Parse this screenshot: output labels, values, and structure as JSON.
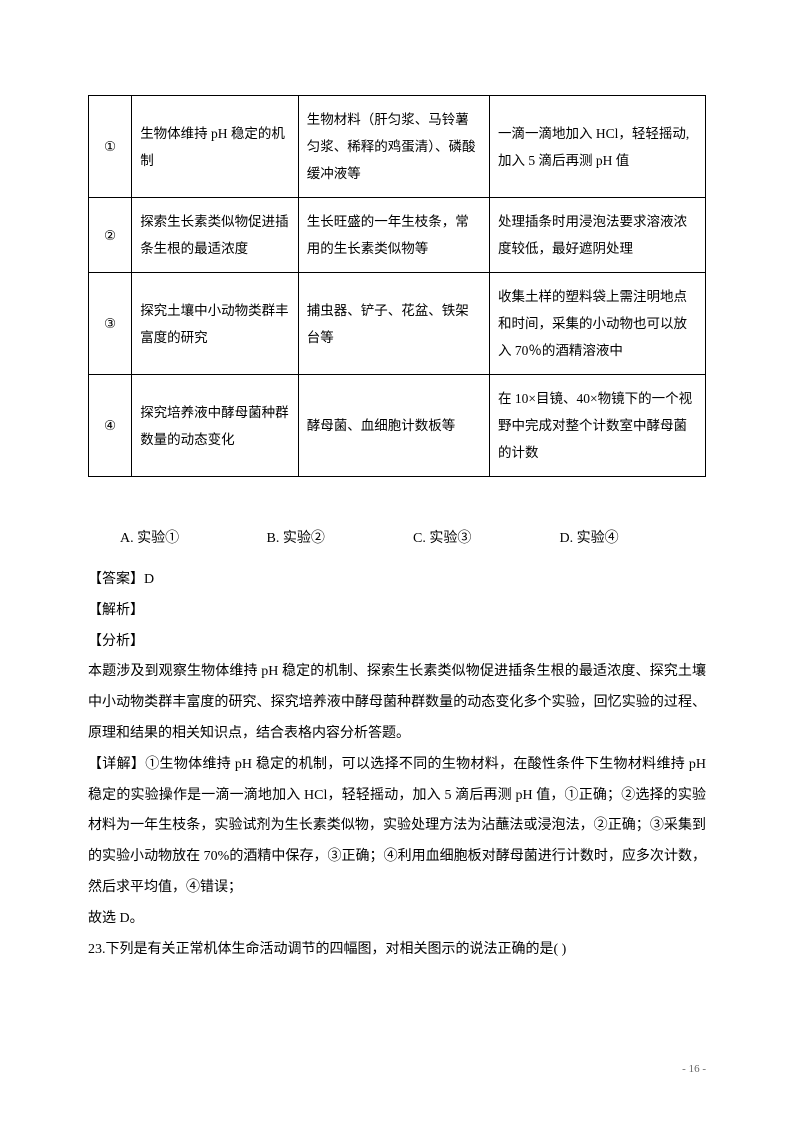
{
  "table": {
    "rows": [
      {
        "num": "①",
        "title": "生物体维持 pH 稳定的机制",
        "materials": "生物材料（肝匀浆、马铃薯匀浆、稀释的鸡蛋清）、磷酸缓冲液等",
        "operation": "一滴一滴地加入 HCl，轻轻摇动,加入 5 滴后再测 pH 值"
      },
      {
        "num": "②",
        "title": "探索生长素类似物促进插条生根的最适浓度",
        "materials": "生长旺盛的一年生枝条，常用的生长素类似物等",
        "operation": "处理插条时用浸泡法要求溶液浓度较低，最好遮阴处理"
      },
      {
        "num": "③",
        "title": "探究土壤中小动物类群丰富度的研究",
        "materials": "捕虫器、铲子、花盆、铁架台等",
        "operation": "收集土样的塑料袋上需注明地点和时间，采集的小动物也可以放入 70％的酒精溶液中"
      },
      {
        "num": "④",
        "title": "探究培养液中酵母菌种群数量的动态变化",
        "materials": "酵母菌、血细胞计数板等",
        "operation": "在 10×目镜、40×物镜下的一个视野中完成对整个计数室中酵母菌的计数"
      }
    ]
  },
  "options": {
    "a": "A. 实验①",
    "b": "B. 实验②",
    "c": "C. 实验③",
    "d": "D. 实验④"
  },
  "answer": {
    "label": "【答案】D",
    "explain_label": "【解析】",
    "analysis_label": "【分析】",
    "analysis_text": "本题涉及到观察生物体维持 pH 稳定的机制、探索生长素类似物促进插条生根的最适浓度、探究土壤中小动物类群丰富度的研究、探究培养液中酵母菌种群数量的动态变化多个实验，回忆实验的过程、原理和结果的相关知识点，结合表格内容分析答题。",
    "detail_text": "【详解】①生物体维持 pH 稳定的机制，可以选择不同的生物材料，在酸性条件下生物材料维持 pH 稳定的实验操作是一滴一滴地加入 HCl，轻轻摇动，加入 5 滴后再测 pH 值，①正确；②选择的实验材料为一年生枝条，实验试剂为生长素类似物，实验处理方法为沾蘸法或浸泡法，②正确；③采集到的实验小动物放在 70%的酒精中保存，③正确；④利用血细胞板对酵母菌进行计数时，应多次计数，然后求平均值，④错误；",
    "conclusion": "故选 D。"
  },
  "question23": "23.下列是有关正常机体生命活动调节的四幅图，对相关图示的说法正确的是(  )",
  "pageNumber": "- 16 -"
}
